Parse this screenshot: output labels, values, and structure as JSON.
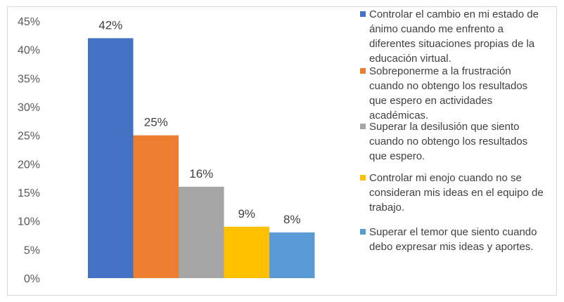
{
  "chart_data": {
    "type": "bar",
    "categories": [
      "Controlar el cambio en mi estado de ánimo cuando me enfrento a diferentes situaciones propias de la educación virtual.",
      "Sobreponerme a la frustración cuando no obtengo los resultados que espero en actividades académicas.",
      "Superar la desilusión que siento cuando no obtengo los resultados que espero.",
      "Controlar mi enojo cuando no se consideran mis ideas en el equipo de trabajo.",
      "Superar el temor que siento cuando debo expresar mis ideas y aportes."
    ],
    "values": [
      42,
      25,
      16,
      9,
      8
    ],
    "data_labels": [
      "42%",
      "25%",
      "16%",
      "9%",
      "8%"
    ],
    "colors": [
      "#4472c4",
      "#ed7d31",
      "#a5a5a5",
      "#ffc000",
      "#5b9bd5"
    ],
    "ylim": [
      0,
      45
    ],
    "y_ticks": [
      "0%",
      "5%",
      "10%",
      "15%",
      "20%",
      "25%",
      "30%",
      "35%",
      "40%",
      "45%"
    ],
    "title": "",
    "xlabel": "",
    "ylabel": "",
    "grid": false,
    "legend_position": "right"
  }
}
